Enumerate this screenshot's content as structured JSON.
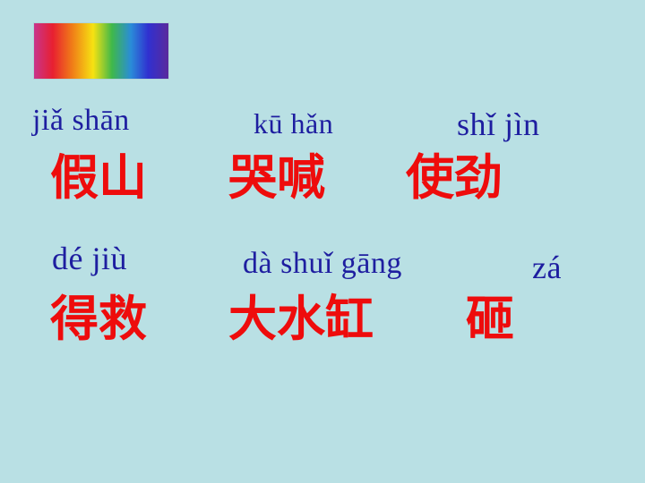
{
  "slide": {
    "decoration": "rainbow-spectrum-bar",
    "colors": {
      "background": "#b9e0e4",
      "pinyin": "#1e1ea0",
      "characters": "#ee0c0c"
    },
    "row1": {
      "pinyin": [
        "jiǎ shān",
        "kū hǎn",
        "shǐ  jìn"
      ],
      "words": [
        "假山",
        "哭喊",
        "使劲"
      ]
    },
    "row2": {
      "pinyin": [
        "dé  jiù",
        "dà  shuǐ gāng",
        "zá"
      ],
      "words": [
        "得救",
        "大水缸",
        "砸"
      ]
    }
  }
}
